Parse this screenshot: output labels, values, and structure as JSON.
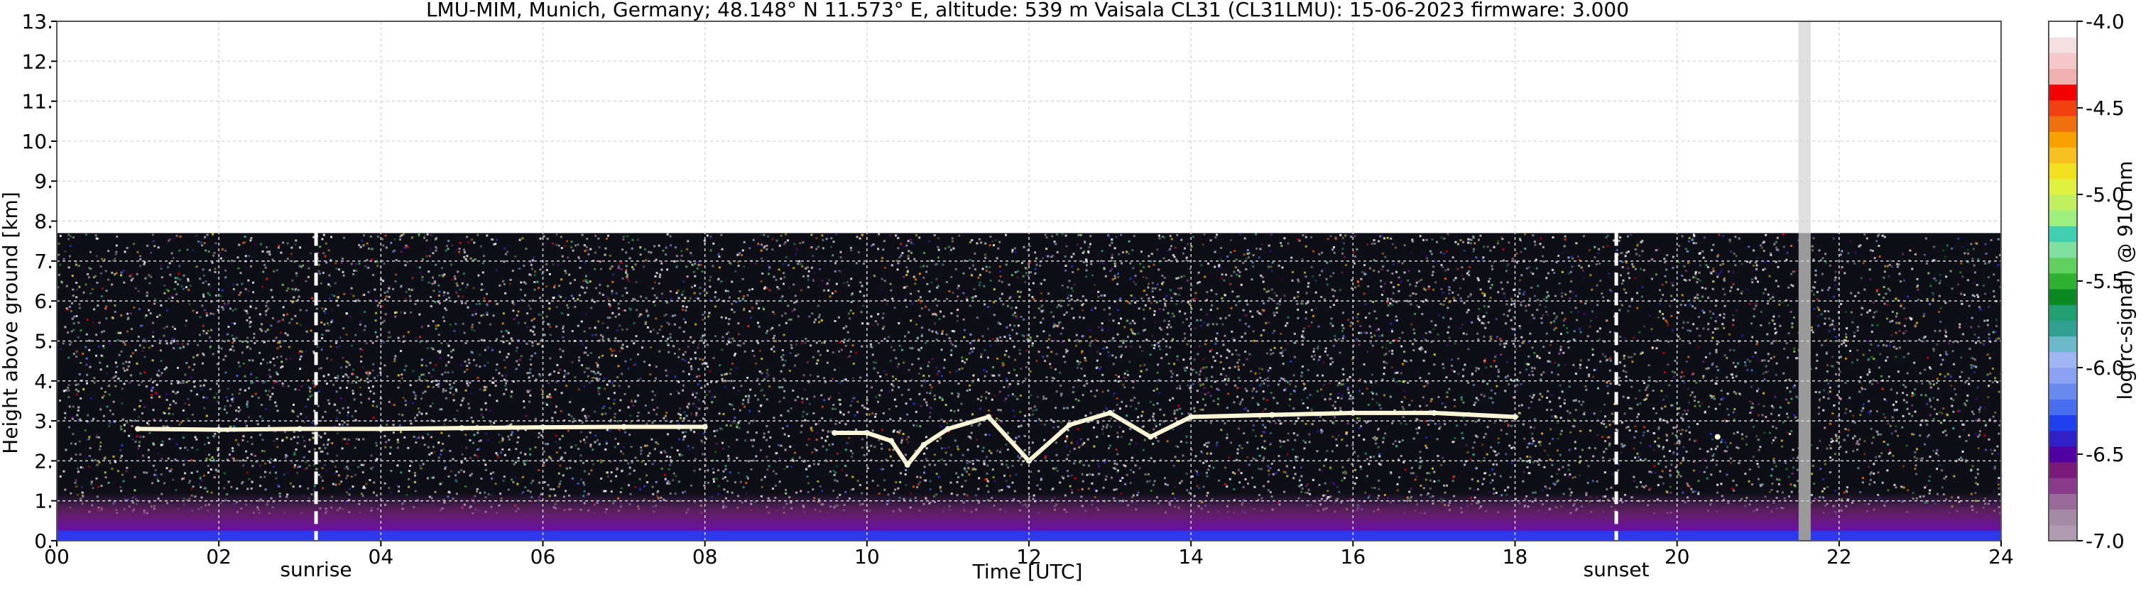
{
  "chart_data": {
    "type": "heatmap",
    "title": "LMU-MIM, Munich, Germany; 48.148° N 11.573° E, altitude: 539 m    Vaisala CL31 (CL31LMU): 15-06-2023    firmware: 3.000",
    "xlabel": "Time [UTC]",
    "ylabel": "Height above ground [km]",
    "xlim": [
      0,
      24
    ],
    "ylim": [
      0,
      13
    ],
    "x_ticks": [
      "00",
      "02",
      "04",
      "06",
      "08",
      "10",
      "12",
      "14",
      "16",
      "18",
      "20",
      "22",
      "24"
    ],
    "y_ticks": [
      "0.",
      "1.",
      "2.",
      "3.",
      "4.",
      "5.",
      "6.",
      "7.",
      "8.",
      "9.",
      "10.",
      "11.",
      "12.",
      "13."
    ],
    "grid": true,
    "data_top_km": 7.7,
    "missing_data_interval_hours": [
      21.5,
      21.65
    ],
    "annotations": [
      {
        "label": "sunrise",
        "time_hours": 3.2
      },
      {
        "label": "sunset",
        "time_hours": 19.25
      }
    ],
    "cloud_layer": [
      {
        "t": 1.0,
        "h": 2.8
      },
      {
        "t": 2.0,
        "h": 2.78
      },
      {
        "t": 3.0,
        "h": 2.8
      },
      {
        "t": 4.0,
        "h": 2.8
      },
      {
        "t": 5.0,
        "h": 2.82
      },
      {
        "t": 6.0,
        "h": 2.84
      },
      {
        "t": 7.0,
        "h": 2.85
      },
      {
        "t": 8.0,
        "h": 2.85
      },
      {
        "t": 9.6,
        "h": 2.7
      },
      {
        "t": 10.0,
        "h": 2.7
      },
      {
        "t": 10.3,
        "h": 2.5
      },
      {
        "t": 10.5,
        "h": 1.9
      },
      {
        "t": 10.7,
        "h": 2.4
      },
      {
        "t": 11.0,
        "h": 2.8
      },
      {
        "t": 11.5,
        "h": 3.1
      },
      {
        "t": 12.0,
        "h": 2.0
      },
      {
        "t": 12.5,
        "h": 2.9
      },
      {
        "t": 13.0,
        "h": 3.2
      },
      {
        "t": 13.5,
        "h": 2.6
      },
      {
        "t": 14.0,
        "h": 3.1
      },
      {
        "t": 15.0,
        "h": 3.15
      },
      {
        "t": 16.0,
        "h": 3.2
      },
      {
        "t": 17.0,
        "h": 3.2
      },
      {
        "t": 18.0,
        "h": 3.1
      },
      {
        "t": 20.5,
        "h": 2.6
      }
    ],
    "colorbar": {
      "label": "log(rc-signal) @ 910 nm",
      "range": [
        -7.0,
        -4.0
      ],
      "ticks": [
        "-4.0",
        "-4.5",
        "-5.0",
        "-5.5",
        "-6.0",
        "-6.5",
        "-7.0"
      ],
      "colors": [
        "#b09ab0",
        "#a48aa4",
        "#9a6a9a",
        "#8a3a8a",
        "#7a1a7a",
        "#5000a0",
        "#3020c8",
        "#2040f0",
        "#4a6ef0",
        "#6a8af0",
        "#8aa0f0",
        "#a0b6f4",
        "#6ab8c8",
        "#30a090",
        "#20a070",
        "#0a8a20",
        "#30b030",
        "#60d060",
        "#80e0a0",
        "#40d0b0",
        "#a0f080",
        "#c0f060",
        "#e0f040",
        "#f0e020",
        "#f8c020",
        "#f8a000",
        "#f07010",
        "#f04010",
        "#f00000",
        "#f0b0b0",
        "#f4c8c8",
        "#f4e0e0",
        "#ffffff"
      ]
    }
  }
}
